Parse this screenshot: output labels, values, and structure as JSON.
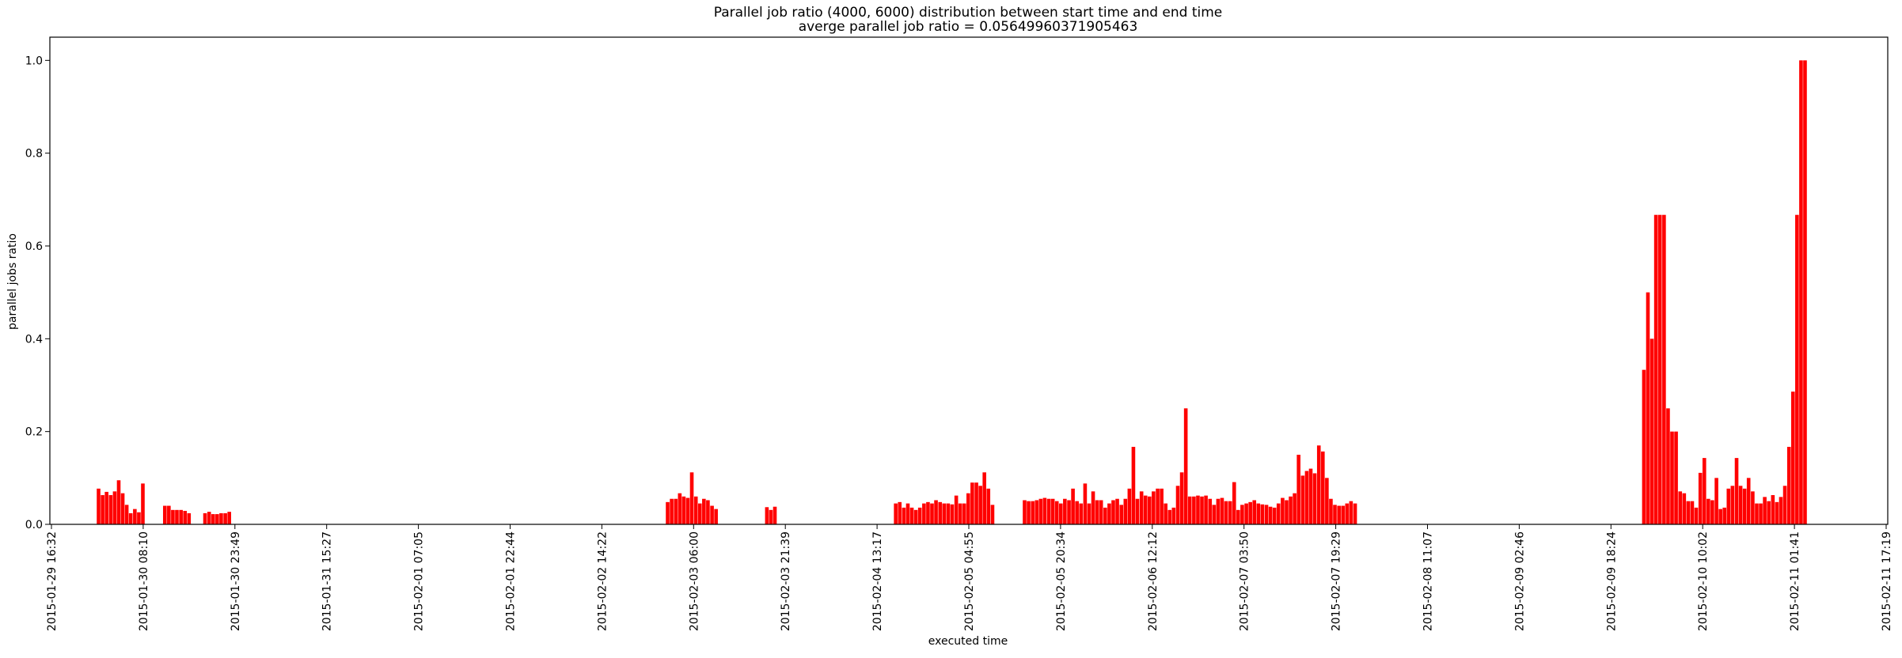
{
  "chart_data": {
    "type": "bar",
    "title": "Parallel job ratio (4000, 6000) distribution between start time and end time",
    "subtitle": "averge parallel job ratio = 0.05649960371905463",
    "xlabel": "executed time",
    "ylabel": "parallel jobs ratio",
    "ylim": [
      0,
      1.05
    ],
    "yticks": [
      "0.0",
      "0.2",
      "0.4",
      "0.6",
      "0.8",
      "1.0"
    ],
    "bar_color": "#ff0000",
    "grid": false,
    "legend": "none",
    "x_start": "2015-01-29 16:32",
    "x_end": "2015-02-11 17:19",
    "xtick_labels": [
      "2015-01-29 16:32",
      "2015-01-30 08:10",
      "2015-01-30 23:49",
      "2015-01-31 15:27",
      "2015-02-01 07:05",
      "2015-02-01 22:44",
      "2015-02-02 14:22",
      "2015-02-03 06:00",
      "2015-02-03 21:39",
      "2015-02-04 13:17",
      "2015-02-05 04:55",
      "2015-02-05 20:34",
      "2015-02-06 12:12",
      "2015-02-07 03:50",
      "2015-02-07 19:29",
      "2015-02-08 11:07",
      "2015-02-09 02:46",
      "2015-02-09 18:24",
      "2015-02-10 10:02",
      "2015-02-11 01:41",
      "2015-02-11 17:19"
    ],
    "series": [
      {
        "bars": [
          {
            "x": "2015-01-30 00:34",
            "value": 0.077
          },
          {
            "x": "2015-01-30 01:15",
            "value": 0.063
          },
          {
            "x": "2015-01-30 01:56",
            "value": 0.07
          },
          {
            "x": "2015-01-30 02:38",
            "value": 0.063
          },
          {
            "x": "2015-01-30 03:19",
            "value": 0.071
          },
          {
            "x": "2015-01-30 04:00",
            "value": 0.095
          },
          {
            "x": "2015-01-30 04:41",
            "value": 0.067
          },
          {
            "x": "2015-01-30 05:22",
            "value": 0.042
          },
          {
            "x": "2015-01-30 06:03",
            "value": 0.024
          },
          {
            "x": "2015-01-30 06:45",
            "value": 0.033
          },
          {
            "x": "2015-01-30 07:26",
            "value": 0.026
          },
          {
            "x": "2015-01-30 08:07",
            "value": 0.088
          },
          {
            "x": "2015-01-30 11:52",
            "value": 0.04
          },
          {
            "x": "2015-01-30 12:33",
            "value": 0.04
          },
          {
            "x": "2015-01-30 13:14",
            "value": 0.031
          },
          {
            "x": "2015-01-30 13:55",
            "value": 0.031
          },
          {
            "x": "2015-01-30 14:37",
            "value": 0.031
          },
          {
            "x": "2015-01-30 15:18",
            "value": 0.029
          },
          {
            "x": "2015-01-30 15:59",
            "value": 0.024
          },
          {
            "x": "2015-01-30 18:43",
            "value": 0.024
          },
          {
            "x": "2015-01-30 19:25",
            "value": 0.027
          },
          {
            "x": "2015-01-30 20:06",
            "value": 0.022
          },
          {
            "x": "2015-01-30 20:47",
            "value": 0.022
          },
          {
            "x": "2015-01-30 21:28",
            "value": 0.024
          },
          {
            "x": "2015-01-30 22:10",
            "value": 0.024
          },
          {
            "x": "2015-01-30 22:51",
            "value": 0.027
          },
          {
            "x": "2015-02-03 01:35",
            "value": 0.048
          },
          {
            "x": "2015-02-03 02:16",
            "value": 0.055
          },
          {
            "x": "2015-02-03 02:58",
            "value": 0.055
          },
          {
            "x": "2015-02-03 03:39",
            "value": 0.067
          },
          {
            "x": "2015-02-03 04:20",
            "value": 0.06
          },
          {
            "x": "2015-02-03 05:01",
            "value": 0.057
          },
          {
            "x": "2015-02-03 05:42",
            "value": 0.112
          },
          {
            "x": "2015-02-03 06:24",
            "value": 0.06
          },
          {
            "x": "2015-02-03 07:05",
            "value": 0.045
          },
          {
            "x": "2015-02-03 07:46",
            "value": 0.055
          },
          {
            "x": "2015-02-03 08:27",
            "value": 0.052
          },
          {
            "x": "2015-02-03 09:09",
            "value": 0.04
          },
          {
            "x": "2015-02-03 09:50",
            "value": 0.033
          },
          {
            "x": "2015-02-03 18:30",
            "value": 0.037
          },
          {
            "x": "2015-02-03 19:11",
            "value": 0.031
          },
          {
            "x": "2015-02-03 19:52",
            "value": 0.038
          },
          {
            "x": "2015-02-04 16:28",
            "value": 0.045
          },
          {
            "x": "2015-02-04 17:09",
            "value": 0.048
          },
          {
            "x": "2015-02-04 17:51",
            "value": 0.036
          },
          {
            "x": "2015-02-04 18:32",
            "value": 0.045
          },
          {
            "x": "2015-02-04 19:13",
            "value": 0.036
          },
          {
            "x": "2015-02-04 19:54",
            "value": 0.031
          },
          {
            "x": "2015-02-04 20:35",
            "value": 0.036
          },
          {
            "x": "2015-02-04 21:17",
            "value": 0.045
          },
          {
            "x": "2015-02-04 21:58",
            "value": 0.048
          },
          {
            "x": "2015-02-04 22:39",
            "value": 0.045
          },
          {
            "x": "2015-02-04 23:20",
            "value": 0.052
          },
          {
            "x": "2015-02-05 00:02",
            "value": 0.048
          },
          {
            "x": "2015-02-05 00:43",
            "value": 0.045
          },
          {
            "x": "2015-02-05 01:24",
            "value": 0.045
          },
          {
            "x": "2015-02-05 02:05",
            "value": 0.043
          },
          {
            "x": "2015-02-05 02:47",
            "value": 0.062
          },
          {
            "x": "2015-02-05 03:28",
            "value": 0.045
          },
          {
            "x": "2015-02-05 04:09",
            "value": 0.045
          },
          {
            "x": "2015-02-05 04:50",
            "value": 0.067
          },
          {
            "x": "2015-02-05 05:31",
            "value": 0.09
          },
          {
            "x": "2015-02-05 06:13",
            "value": 0.09
          },
          {
            "x": "2015-02-05 06:54",
            "value": 0.083
          },
          {
            "x": "2015-02-05 07:35",
            "value": 0.112
          },
          {
            "x": "2015-02-05 08:16",
            "value": 0.077
          },
          {
            "x": "2015-02-05 08:58",
            "value": 0.042
          },
          {
            "x": "2015-02-05 14:26",
            "value": 0.052
          },
          {
            "x": "2015-02-05 15:07",
            "value": 0.05
          },
          {
            "x": "2015-02-05 15:49",
            "value": 0.05
          },
          {
            "x": "2015-02-05 16:30",
            "value": 0.052
          },
          {
            "x": "2015-02-05 17:11",
            "value": 0.055
          },
          {
            "x": "2015-02-05 17:52",
            "value": 0.057
          },
          {
            "x": "2015-02-05 18:34",
            "value": 0.055
          },
          {
            "x": "2015-02-05 19:15",
            "value": 0.055
          },
          {
            "x": "2015-02-05 19:56",
            "value": 0.05
          },
          {
            "x": "2015-02-05 20:37",
            "value": 0.045
          },
          {
            "x": "2015-02-05 21:18",
            "value": 0.055
          },
          {
            "x": "2015-02-05 22:00",
            "value": 0.052
          },
          {
            "x": "2015-02-05 22:41",
            "value": 0.077
          },
          {
            "x": "2015-02-05 23:22",
            "value": 0.05
          },
          {
            "x": "2015-02-06 00:03",
            "value": 0.045
          },
          {
            "x": "2015-02-06 00:45",
            "value": 0.088
          },
          {
            "x": "2015-02-06 01:26",
            "value": 0.045
          },
          {
            "x": "2015-02-06 02:07",
            "value": 0.071
          },
          {
            "x": "2015-02-06 02:48",
            "value": 0.052
          },
          {
            "x": "2015-02-06 03:29",
            "value": 0.052
          },
          {
            "x": "2015-02-06 04:11",
            "value": 0.036
          },
          {
            "x": "2015-02-06 04:52",
            "value": 0.045
          },
          {
            "x": "2015-02-06 05:33",
            "value": 0.052
          },
          {
            "x": "2015-02-06 06:14",
            "value": 0.055
          },
          {
            "x": "2015-02-06 06:56",
            "value": 0.042
          },
          {
            "x": "2015-02-06 07:37",
            "value": 0.055
          },
          {
            "x": "2015-02-06 08:18",
            "value": 0.077
          },
          {
            "x": "2015-02-06 08:59",
            "value": 0.167
          },
          {
            "x": "2015-02-06 09:40",
            "value": 0.055
          },
          {
            "x": "2015-02-06 10:22",
            "value": 0.071
          },
          {
            "x": "2015-02-06 11:03",
            "value": 0.062
          },
          {
            "x": "2015-02-06 11:44",
            "value": 0.06
          },
          {
            "x": "2015-02-06 12:25",
            "value": 0.071
          },
          {
            "x": "2015-02-06 13:07",
            "value": 0.077
          },
          {
            "x": "2015-02-06 13:48",
            "value": 0.077
          },
          {
            "x": "2015-02-06 14:29",
            "value": 0.045
          },
          {
            "x": "2015-02-06 15:10",
            "value": 0.031
          },
          {
            "x": "2015-02-06 15:51",
            "value": 0.036
          },
          {
            "x": "2015-02-06 16:33",
            "value": 0.083
          },
          {
            "x": "2015-02-06 17:14",
            "value": 0.112
          },
          {
            "x": "2015-02-06 17:55",
            "value": 0.25
          },
          {
            "x": "2015-02-06 18:36",
            "value": 0.06
          },
          {
            "x": "2015-02-06 19:18",
            "value": 0.06
          },
          {
            "x": "2015-02-06 19:59",
            "value": 0.062
          },
          {
            "x": "2015-02-06 20:40",
            "value": 0.06
          },
          {
            "x": "2015-02-06 21:21",
            "value": 0.062
          },
          {
            "x": "2015-02-06 22:03",
            "value": 0.055
          },
          {
            "x": "2015-02-06 22:44",
            "value": 0.042
          },
          {
            "x": "2015-02-06 23:25",
            "value": 0.055
          },
          {
            "x": "2015-02-07 00:06",
            "value": 0.057
          },
          {
            "x": "2015-02-07 00:47",
            "value": 0.05
          },
          {
            "x": "2015-02-07 01:29",
            "value": 0.05
          },
          {
            "x": "2015-02-07 02:10",
            "value": 0.091
          },
          {
            "x": "2015-02-07 02:51",
            "value": 0.031
          },
          {
            "x": "2015-02-07 03:32",
            "value": 0.042
          },
          {
            "x": "2015-02-07 04:14",
            "value": 0.045
          },
          {
            "x": "2015-02-07 04:55",
            "value": 0.048
          },
          {
            "x": "2015-02-07 05:36",
            "value": 0.052
          },
          {
            "x": "2015-02-07 06:17",
            "value": 0.045
          },
          {
            "x": "2015-02-07 06:58",
            "value": 0.043
          },
          {
            "x": "2015-02-07 07:40",
            "value": 0.042
          },
          {
            "x": "2015-02-07 08:21",
            "value": 0.038
          },
          {
            "x": "2015-02-07 09:02",
            "value": 0.036
          },
          {
            "x": "2015-02-07 09:43",
            "value": 0.045
          },
          {
            "x": "2015-02-07 10:25",
            "value": 0.057
          },
          {
            "x": "2015-02-07 11:06",
            "value": 0.052
          },
          {
            "x": "2015-02-07 11:47",
            "value": 0.06
          },
          {
            "x": "2015-02-07 12:28",
            "value": 0.067
          },
          {
            "x": "2015-02-07 13:09",
            "value": 0.15
          },
          {
            "x": "2015-02-07 13:51",
            "value": 0.105
          },
          {
            "x": "2015-02-07 14:32",
            "value": 0.115
          },
          {
            "x": "2015-02-07 15:13",
            "value": 0.12
          },
          {
            "x": "2015-02-07 15:54",
            "value": 0.11
          },
          {
            "x": "2015-02-07 16:36",
            "value": 0.17
          },
          {
            "x": "2015-02-07 17:17",
            "value": 0.157
          },
          {
            "x": "2015-02-07 17:58",
            "value": 0.1
          },
          {
            "x": "2015-02-07 18:39",
            "value": 0.055
          },
          {
            "x": "2015-02-07 19:20",
            "value": 0.042
          },
          {
            "x": "2015-02-07 20:02",
            "value": 0.04
          },
          {
            "x": "2015-02-07 20:43",
            "value": 0.04
          },
          {
            "x": "2015-02-07 21:24",
            "value": 0.045
          },
          {
            "x": "2015-02-07 22:05",
            "value": 0.05
          },
          {
            "x": "2015-02-07 22:47",
            "value": 0.045
          },
          {
            "x": "2015-02-10 00:01",
            "value": 0.333
          },
          {
            "x": "2015-02-10 00:42",
            "value": 0.5
          },
          {
            "x": "2015-02-10 01:23",
            "value": 0.4
          },
          {
            "x": "2015-02-10 02:04",
            "value": 0.667
          },
          {
            "x": "2015-02-10 02:45",
            "value": 0.667
          },
          {
            "x": "2015-02-10 03:27",
            "value": 0.667
          },
          {
            "x": "2015-02-10 04:08",
            "value": 0.25
          },
          {
            "x": "2015-02-10 04:49",
            "value": 0.2
          },
          {
            "x": "2015-02-10 05:30",
            "value": 0.2
          },
          {
            "x": "2015-02-10 06:12",
            "value": 0.071
          },
          {
            "x": "2015-02-10 06:53",
            "value": 0.067
          },
          {
            "x": "2015-02-10 07:34",
            "value": 0.05
          },
          {
            "x": "2015-02-10 08:15",
            "value": 0.05
          },
          {
            "x": "2015-02-10 08:56",
            "value": 0.036
          },
          {
            "x": "2015-02-10 09:38",
            "value": 0.111
          },
          {
            "x": "2015-02-10 10:19",
            "value": 0.143
          },
          {
            "x": "2015-02-10 11:00",
            "value": 0.055
          },
          {
            "x": "2015-02-10 11:41",
            "value": 0.052
          },
          {
            "x": "2015-02-10 12:23",
            "value": 0.1
          },
          {
            "x": "2015-02-10 13:04",
            "value": 0.033
          },
          {
            "x": "2015-02-10 13:45",
            "value": 0.036
          },
          {
            "x": "2015-02-10 14:26",
            "value": 0.077
          },
          {
            "x": "2015-02-10 15:07",
            "value": 0.083
          },
          {
            "x": "2015-02-10 15:49",
            "value": 0.143
          },
          {
            "x": "2015-02-10 16:30",
            "value": 0.083
          },
          {
            "x": "2015-02-10 17:11",
            "value": 0.077
          },
          {
            "x": "2015-02-10 17:52",
            "value": 0.1
          },
          {
            "x": "2015-02-10 18:34",
            "value": 0.071
          },
          {
            "x": "2015-02-10 19:15",
            "value": 0.045
          },
          {
            "x": "2015-02-10 19:56",
            "value": 0.045
          },
          {
            "x": "2015-02-10 20:37",
            "value": 0.059
          },
          {
            "x": "2015-02-10 21:18",
            "value": 0.05
          },
          {
            "x": "2015-02-10 22:00",
            "value": 0.063
          },
          {
            "x": "2015-02-10 22:41",
            "value": 0.048
          },
          {
            "x": "2015-02-10 23:22",
            "value": 0.059
          },
          {
            "x": "2015-02-11 00:03",
            "value": 0.083
          },
          {
            "x": "2015-02-11 00:45",
            "value": 0.167
          },
          {
            "x": "2015-02-11 01:26",
            "value": 0.286
          },
          {
            "x": "2015-02-11 02:07",
            "value": 0.667
          },
          {
            "x": "2015-02-11 02:48",
            "value": 1.0
          },
          {
            "x": "2015-02-11 03:29",
            "value": 1.0
          }
        ]
      }
    ]
  }
}
